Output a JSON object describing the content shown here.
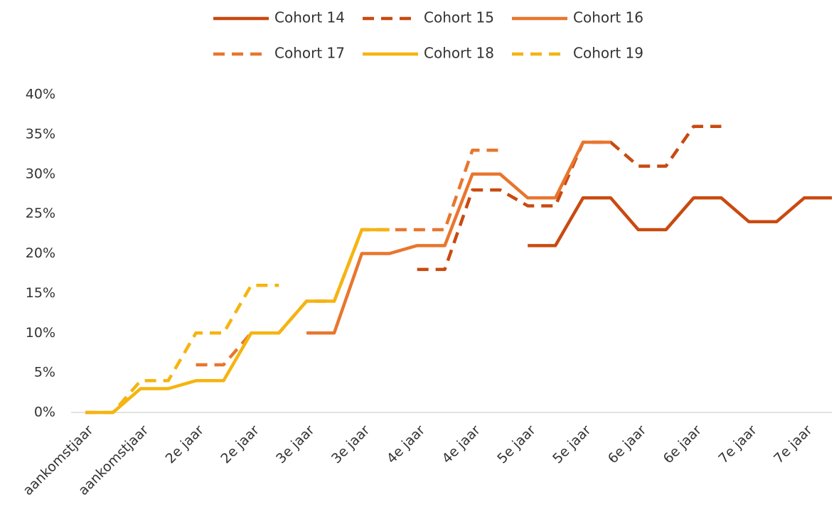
{
  "chart_data": {
    "type": "line",
    "categories": [
      "aankomstjaar",
      null,
      "aankomstjaar",
      null,
      "2e jaar",
      null,
      "2e jaar",
      null,
      "3e jaar",
      null,
      "3e jaar",
      null,
      "4e jaar",
      null,
      "4e jaar",
      null,
      "5e jaar",
      null,
      "5e jaar",
      null,
      "6e jaar",
      null,
      "6e jaar",
      null,
      "7e jaar",
      null,
      "7e jaar",
      null
    ],
    "series": [
      {
        "name": "Cohort 14",
        "color": "#c94a10",
        "dashed": false,
        "values": [
          null,
          null,
          null,
          null,
          null,
          null,
          null,
          null,
          null,
          null,
          null,
          null,
          null,
          null,
          null,
          null,
          21,
          21,
          27,
          27,
          23,
          23,
          27,
          27,
          24,
          24,
          27,
          27
        ]
      },
      {
        "name": "Cohort 15",
        "color": "#c94a10",
        "dashed": true,
        "values": [
          null,
          null,
          null,
          null,
          null,
          null,
          null,
          null,
          null,
          null,
          null,
          null,
          18,
          18,
          28,
          28,
          26,
          26,
          34,
          34,
          31,
          31,
          36,
          36,
          null,
          null,
          null,
          null
        ]
      },
      {
        "name": "Cohort 16",
        "color": "#e8762e",
        "dashed": false,
        "values": [
          null,
          null,
          null,
          null,
          null,
          null,
          null,
          null,
          10,
          10,
          20,
          20,
          21,
          21,
          30,
          30,
          27,
          27,
          34,
          34,
          null,
          null,
          null,
          null,
          null,
          null,
          null,
          null
        ]
      },
      {
        "name": "Cohort 17",
        "color": "#e8762e",
        "dashed": true,
        "values": [
          null,
          null,
          null,
          null,
          6,
          6,
          10,
          10,
          14,
          14,
          23,
          23,
          23,
          23,
          33,
          33,
          null,
          null,
          null,
          null,
          null,
          null,
          null,
          null,
          null,
          null,
          null,
          null
        ]
      },
      {
        "name": "Cohort 18",
        "color": "#f5b40f",
        "dashed": false,
        "values": [
          0,
          0,
          3,
          3,
          4,
          4,
          10,
          10,
          14,
          14,
          23,
          23,
          null,
          null,
          null,
          null,
          null,
          null,
          null,
          null,
          null,
          null,
          null,
          null,
          null,
          null,
          null,
          null
        ]
      },
      {
        "name": "Cohort 19",
        "color": "#f5b40f",
        "dashed": true,
        "values": [
          0,
          0,
          4,
          4,
          10,
          10,
          16,
          16,
          null,
          null,
          null,
          null,
          null,
          null,
          null,
          null,
          null,
          null,
          null,
          null,
          null,
          null,
          null,
          null,
          null,
          null,
          null,
          null
        ]
      }
    ],
    "ylim": [
      0,
      40
    ],
    "yticks": [
      {
        "value": 0,
        "label": "0%"
      },
      {
        "value": 5,
        "label": "5%"
      },
      {
        "value": 10,
        "label": "10%"
      },
      {
        "value": 15,
        "label": "15%"
      },
      {
        "value": 20,
        "label": "20%"
      },
      {
        "value": 25,
        "label": "25%"
      },
      {
        "value": 30,
        "label": "30%"
      },
      {
        "value": 35,
        "label": "35%"
      },
      {
        "value": 40,
        "label": "40%"
      }
    ],
    "legend": "top"
  }
}
